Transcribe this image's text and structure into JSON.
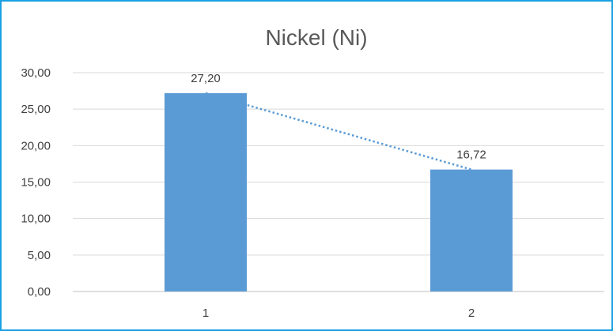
{
  "chart_data": {
    "type": "bar",
    "title": "Nickel (Ni)",
    "categories": [
      "1",
      "2"
    ],
    "values": [
      27.2,
      16.72
    ],
    "value_labels": [
      "27,20",
      "16,72"
    ],
    "y_tick_labels": [
      "0,00",
      "5,00",
      "10,00",
      "15,00",
      "20,00",
      "25,00",
      "30,00"
    ],
    "y_ticks": [
      0,
      5,
      10,
      15,
      20,
      25,
      30
    ],
    "ylim": [
      0,
      30
    ],
    "xlabel": "",
    "ylabel": "",
    "grid": true,
    "legend": "none",
    "trendline": {
      "type": "linear",
      "style": "dotted"
    },
    "colors": {
      "bar": "#5b9bd5",
      "trendline": "#5b9bd5",
      "frame": "#1ba1e2"
    }
  }
}
